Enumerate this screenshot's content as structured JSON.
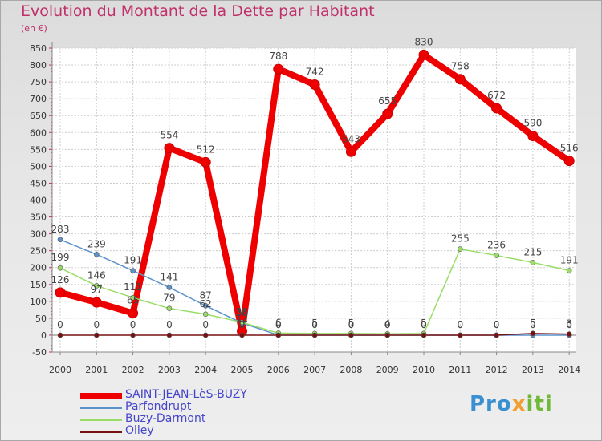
{
  "header": {
    "title": "Evolution du Montant de la Dette par Habitant",
    "unit": "(en €)"
  },
  "logo": {
    "text": "Proxiti",
    "part1": "Pro",
    "part2": "x",
    "part3": "iti"
  },
  "colors": {
    "title": "#c0306a",
    "legend_text": "#4646c8",
    "saint_jean": "#ee0000",
    "parfondrupt": "#5b93cc",
    "buzy": "#99dd66",
    "olley": "#771111"
  },
  "chart_data": {
    "type": "line",
    "title": "Evolution du Montant de la Dette par Habitant",
    "ylabel": "(en €)",
    "xlabel": "",
    "ylim": [
      -50,
      850
    ],
    "y_ticks": [
      -50,
      0,
      50,
      100,
      150,
      200,
      250,
      300,
      350,
      400,
      450,
      500,
      550,
      600,
      650,
      700,
      750,
      800,
      850
    ],
    "grid": true,
    "legend_position": "bottom-left",
    "categories": [
      "2000",
      "2001",
      "2002",
      "2003",
      "2004",
      "2005",
      "2006",
      "2007",
      "2008",
      "2009",
      "2010",
      "2011",
      "2012",
      "2013",
      "2014"
    ],
    "series": [
      {
        "name": "SAINT-JEAN-LèS-BUZY",
        "values": [
          126,
          97,
          65,
          554,
          512,
          12,
          788,
          742,
          543,
          655,
          830,
          758,
          672,
          590,
          516
        ]
      },
      {
        "name": "Parfondrupt",
        "values": [
          283,
          239,
          191,
          141,
          87,
          36,
          0,
          0,
          0,
          0,
          0,
          0,
          0,
          0,
          0
        ]
      },
      {
        "name": "Buzy-Darmont",
        "values": [
          199,
          146,
          111,
          79,
          62,
          38,
          6,
          5,
          5,
          4,
          5,
          255,
          236,
          215,
          191
        ]
      },
      {
        "name": "Olley",
        "values": [
          0,
          0,
          0,
          0,
          0,
          0,
          0,
          0,
          0,
          0,
          0,
          0,
          0,
          5,
          3
        ]
      }
    ]
  }
}
